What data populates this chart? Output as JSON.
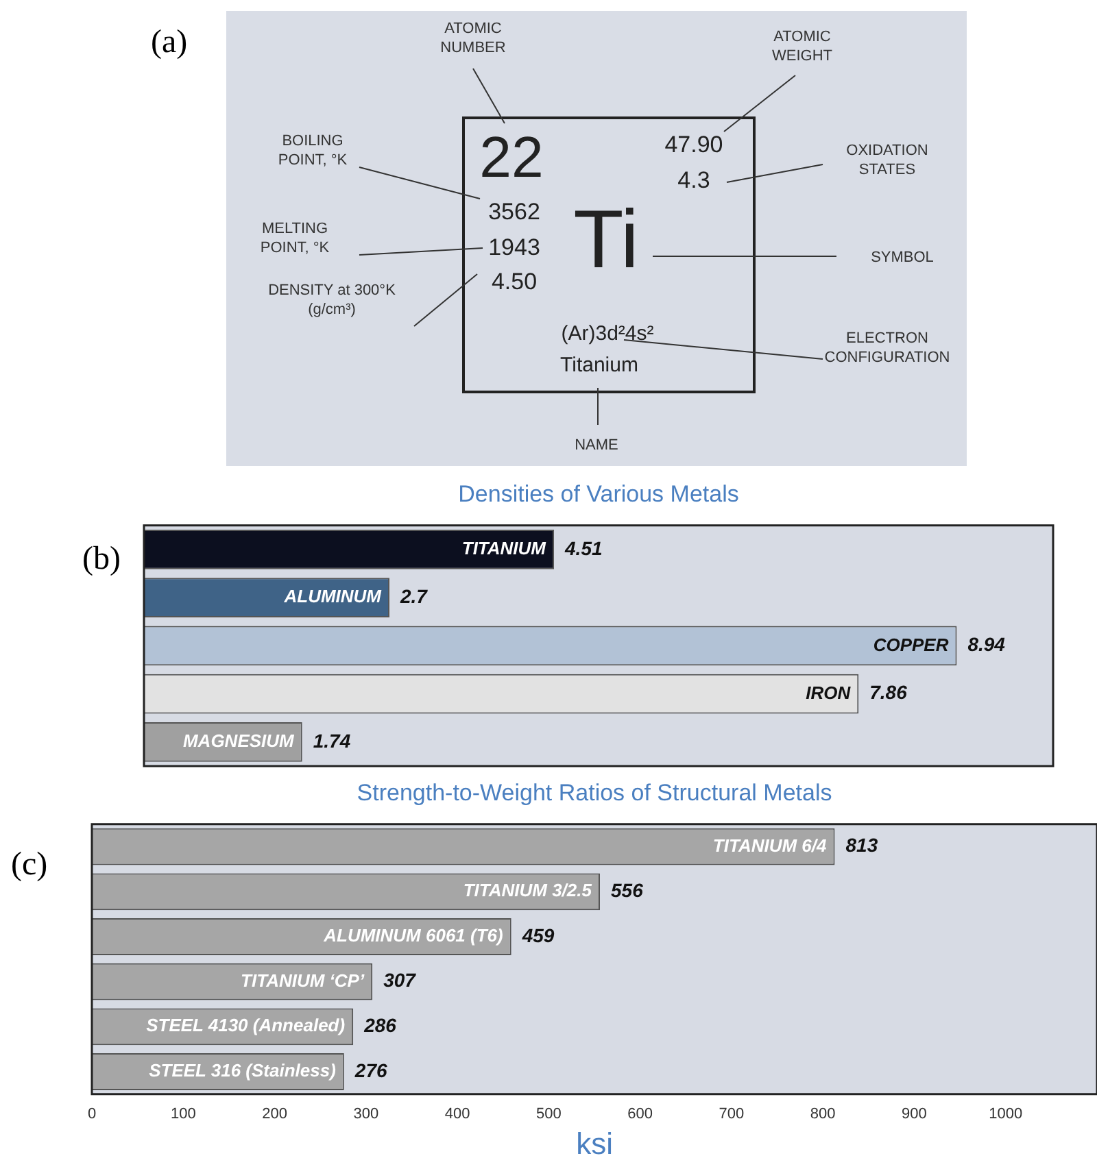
{
  "chart_data": [
    {
      "type": "other",
      "annotations": [
        "(a)",
        "ATOMIC NUMBER",
        "ATOMIC WEIGHT",
        "BOILING POINT, °K",
        "MELTING POINT, °K",
        "DENSITY at 300°K (g/cm³)",
        "OXIDATION STATES",
        "SYMBOL",
        "ELECTRON CONFIGURATION",
        "NAME",
        "22",
        "47.90",
        "4.3",
        "3562",
        "1943",
        "4.50",
        "Ti",
        "(Ar)3d²4s²",
        "Titanium"
      ]
    },
    {
      "type": "bar",
      "orientation": "horizontal",
      "title": "Densities of Various Metals",
      "annotations": [
        "(b)"
      ],
      "categories": [
        "TITANIUM",
        "ALUMINUM",
        "COPPER",
        "IRON",
        "MAGNESIUM"
      ],
      "values": [
        4.51,
        2.7,
        8.94,
        7.86,
        1.74
      ],
      "colors": [
        "#0c0f1f",
        "#3f6387",
        "#b2c2d6",
        "#e2e2e2",
        "#a0a0a0"
      ],
      "data_labels": true
    },
    {
      "type": "bar",
      "orientation": "horizontal",
      "title": "Strength-to-Weight Ratios of Structural Metals",
      "xlabel": "ksi",
      "annotations": [
        "(c)"
      ],
      "categories": [
        "TITANIUM 6/4",
        "TITANIUM 3/2.5",
        "ALUMINUM 6061 (T6)",
        "TITANIUM ‘CP’",
        "STEEL 4130 (Annealed)",
        "STEEL 316 (Stainless)"
      ],
      "values": [
        813,
        556,
        459,
        307,
        286,
        276
      ],
      "color": "#a6a6a6",
      "xlim": [
        0,
        1100
      ],
      "xticks": [
        0,
        100,
        200,
        300,
        400,
        500,
        600,
        700,
        800,
        900,
        1000
      ],
      "data_labels": true
    }
  ]
}
